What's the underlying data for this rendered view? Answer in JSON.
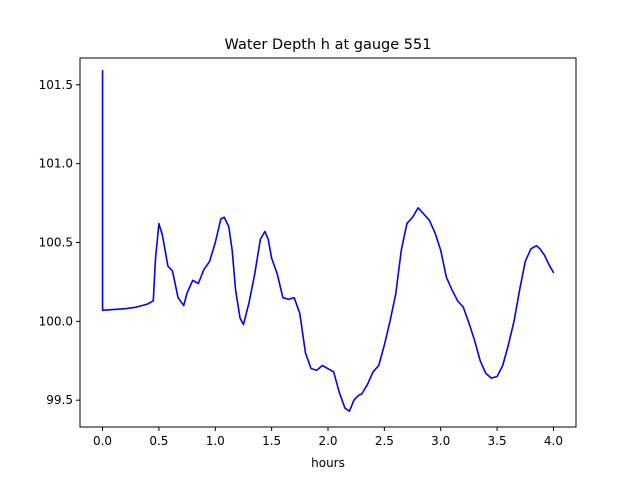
{
  "chart_data": {
    "type": "line",
    "title": "Water Depth h at gauge 551",
    "xlabel": "hours",
    "ylabel": "",
    "xlim": [
      -0.2,
      4.2
    ],
    "ylim": [
      99.33,
      101.67
    ],
    "xticks": [
      0.0,
      0.5,
      1.0,
      1.5,
      2.0,
      2.5,
      3.0,
      3.5,
      4.0
    ],
    "xtick_labels": [
      "0.0",
      "0.5",
      "1.0",
      "1.5",
      "2.0",
      "2.5",
      "3.0",
      "3.5",
      "4.0"
    ],
    "yticks": [
      99.5,
      100.0,
      100.5,
      101.0,
      101.5
    ],
    "ytick_labels": [
      "99.5",
      "100.0",
      "100.5",
      "101.0",
      "101.5"
    ],
    "grid": false,
    "line_color": "#0000ff",
    "series": [
      {
        "x": [
          0.0,
          0.0,
          0.0,
          0.2,
          0.3,
          0.4,
          0.45,
          0.47,
          0.5,
          0.53,
          0.58,
          0.62,
          0.67,
          0.72,
          0.75,
          0.8,
          0.85,
          0.9,
          0.95,
          1.0,
          1.05,
          1.08,
          1.12,
          1.15,
          1.18,
          1.22,
          1.25,
          1.3,
          1.35,
          1.4,
          1.44,
          1.47,
          1.5,
          1.55,
          1.6,
          1.65,
          1.7,
          1.75,
          1.8,
          1.85,
          1.9,
          1.95,
          2.0,
          2.05,
          2.1,
          2.15,
          2.19,
          2.23,
          2.27,
          2.3,
          2.35,
          2.4,
          2.45,
          2.5,
          2.55,
          2.6,
          2.65,
          2.7,
          2.75,
          2.8,
          2.85,
          2.9,
          2.95,
          3.0,
          3.05,
          3.1,
          3.15,
          3.2,
          3.25,
          3.3,
          3.35,
          3.4,
          3.45,
          3.5,
          3.55,
          3.6,
          3.65,
          3.7,
          3.75,
          3.8,
          3.85,
          3.88,
          3.92,
          3.96,
          4.0
        ],
        "y": [
          101.59,
          100.07,
          100.07,
          100.08,
          100.09,
          100.11,
          100.13,
          100.4,
          100.62,
          100.55,
          100.35,
          100.32,
          100.15,
          100.1,
          100.18,
          100.26,
          100.24,
          100.33,
          100.38,
          100.5,
          100.65,
          100.66,
          100.6,
          100.45,
          100.2,
          100.02,
          99.98,
          100.12,
          100.3,
          100.52,
          100.57,
          100.52,
          100.4,
          100.3,
          100.15,
          100.14,
          100.15,
          100.05,
          99.8,
          99.7,
          99.69,
          99.72,
          99.7,
          99.68,
          99.55,
          99.45,
          99.43,
          99.5,
          99.53,
          99.54,
          99.6,
          99.68,
          99.72,
          99.85,
          100.0,
          100.17,
          100.45,
          100.62,
          100.66,
          100.72,
          100.68,
          100.64,
          100.56,
          100.45,
          100.28,
          100.2,
          100.13,
          100.09,
          99.99,
          99.88,
          99.75,
          99.67,
          99.64,
          99.65,
          99.72,
          99.85,
          100.0,
          100.2,
          100.38,
          100.46,
          100.48,
          100.46,
          100.42,
          100.36,
          100.31
        ]
      }
    ]
  }
}
